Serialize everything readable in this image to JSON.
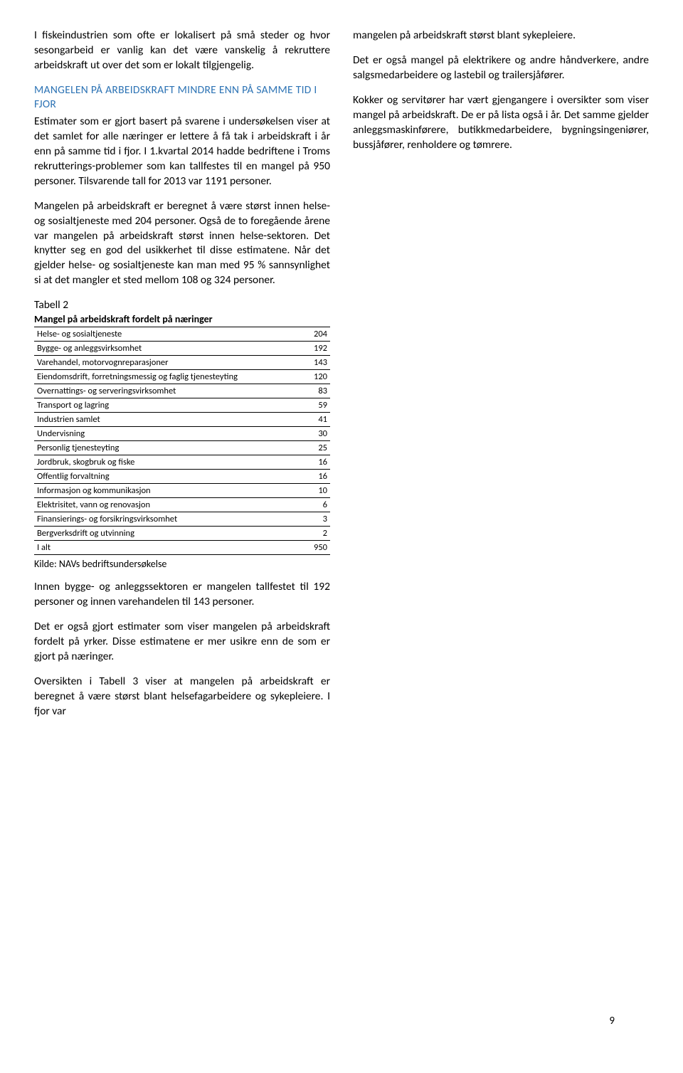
{
  "col1": {
    "p1": "I fiskeindustrien som ofte er lokalisert på små steder og hvor sesongarbeid er vanlig kan det være vanskelig å rekruttere arbeidskraft ut over det som er lokalt tilgjengelig.",
    "heading": "MANGELEN PÅ ARBEIDSKRAFT MINDRE ENN PÅ SAMME TID I FJOR",
    "p2": "Estimater som er gjort basert på svarene i undersøkelsen viser at det samlet for alle næringer er lettere å få tak i arbeidskraft i år enn på samme tid i fjor. I 1.kvartal 2014 hadde bedriftene i Troms rekrutterings-problemer som kan tallfestes til en mangel på 950 personer. Tilsvarende tall for 2013 var 1191 personer.",
    "p3": "Mangelen på arbeidskraft er beregnet å være størst innen helse- og sosialtjeneste med 204 personer. Også de to foregående årene var mangelen på arbeidskraft størst innen helse-sektoren. Det knytter seg en god del usikkerhet til disse estimatene. Når det gjelder helse- og sosialtjeneste kan man med 95 % sannsynlighet si at det mangler et sted mellom 108 og 324 personer.",
    "table_label": "Tabell 2",
    "table_title": "Mangel på arbeidskraft fordelt på næringer",
    "table_rows": [
      {
        "label": "Helse- og sosialtjeneste",
        "val": "204"
      },
      {
        "label": "Bygge- og anleggsvirksomhet",
        "val": "192"
      },
      {
        "label": "Varehandel, motorvognreparasjoner",
        "val": "143"
      },
      {
        "label": "Eiendomsdrift, forretningsmessig og faglig tjenesteyting",
        "val": "120"
      },
      {
        "label": "Overnattings- og serveringsvirksomhet",
        "val": "83"
      },
      {
        "label": "Transport og lagring",
        "val": "59"
      },
      {
        "label": "Industrien samlet",
        "val": "41"
      },
      {
        "label": "Undervisning",
        "val": "30"
      },
      {
        "label": "Personlig tjenesteyting",
        "val": "25"
      },
      {
        "label": "Jordbruk, skogbruk og fiske",
        "val": "16"
      },
      {
        "label": "Offentlig forvaltning",
        "val": "16"
      },
      {
        "label": "Informasjon og kommunikasjon",
        "val": "10"
      },
      {
        "label": "Elektrisitet, vann og renovasjon",
        "val": "6"
      },
      {
        "label": "Finansierings- og forsikringsvirksomhet",
        "val": "3"
      },
      {
        "label": "Bergverksdrift og utvinning",
        "val": "2"
      },
      {
        "label": "I alt",
        "val": "950"
      }
    ],
    "source": "Kilde: NAVs bedriftsundersøkelse",
    "p4": "Innen bygge- og anleggssektoren er mangelen tallfestet til 192 personer og innen varehandelen til 143 personer.",
    "p5": "Det er også gjort estimater som viser mangelen på arbeidskraft fordelt på yrker. Disse estimatene er mer usikre enn de som er gjort på næringer.",
    "p6": "Oversikten i Tabell 3 viser at mangelen på arbeidskraft er beregnet å være størst blant helsefagarbeidere og sykepleiere. I fjor var"
  },
  "col2": {
    "p1": "mangelen på arbeidskraft størst blant sykepleiere.",
    "p2": "Det er også mangel på elektrikere og andre håndverkere, andre salgsmedarbeidere og lastebil og trailersjåfører.",
    "p3": "Kokker og servitører har vært gjengangere i oversikter som viser mangel på arbeidskraft. De er på lista også i år. Det samme gjelder anleggsmaskinførere, butikkmedarbeidere, bygningsingeniører, bussjåfører, renholdere og tømrere."
  },
  "page_number": "9",
  "colors": {
    "heading": "#2e74b5",
    "text": "#000000",
    "background": "#ffffff"
  }
}
